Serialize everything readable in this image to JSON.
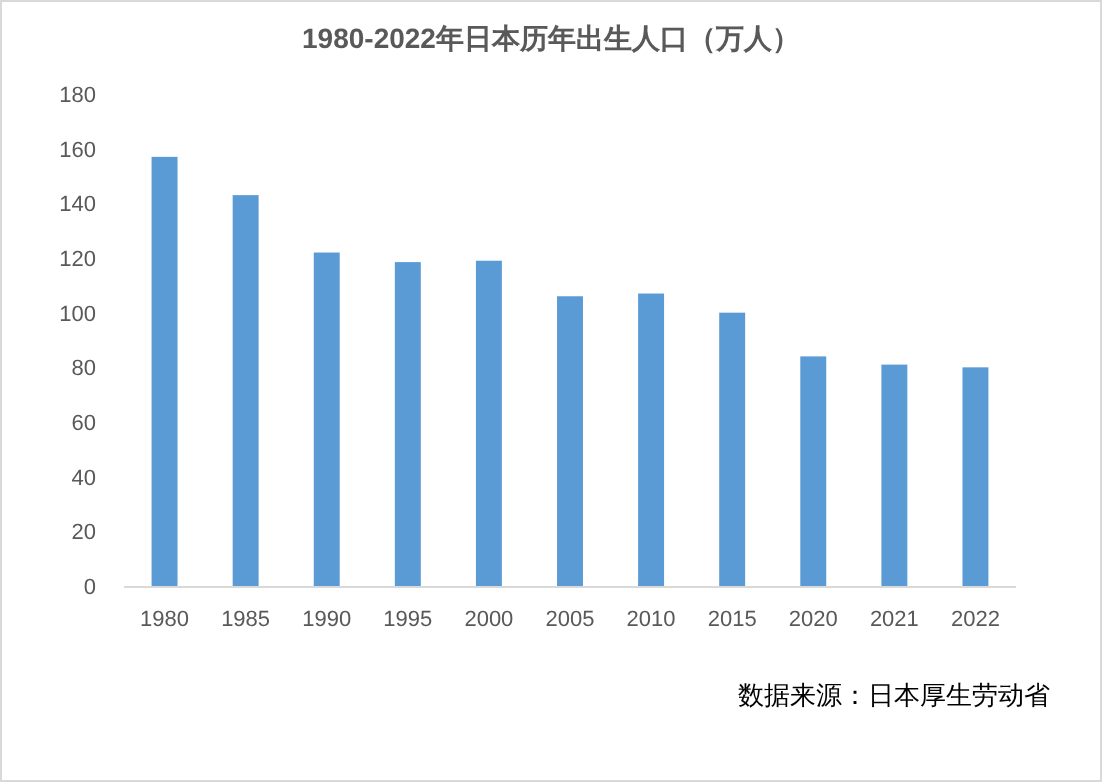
{
  "chart_data": {
    "type": "bar",
    "title": "1980-2022年日本历年出生人口（万人）",
    "categories": [
      "1980",
      "1985",
      "1990",
      "1995",
      "2000",
      "2005",
      "2010",
      "2015",
      "2020",
      "2021",
      "2022"
    ],
    "values": [
      157,
      143,
      122,
      118.5,
      119,
      106,
      107,
      100,
      84,
      81,
      80
    ],
    "color": "#5b9bd5",
    "ylim": [
      0,
      180
    ],
    "yticks": [
      0,
      20,
      40,
      60,
      80,
      100,
      120,
      140,
      160,
      180
    ],
    "grid": false,
    "annotations": [
      "数据来源：日本厚生劳动省"
    ]
  }
}
